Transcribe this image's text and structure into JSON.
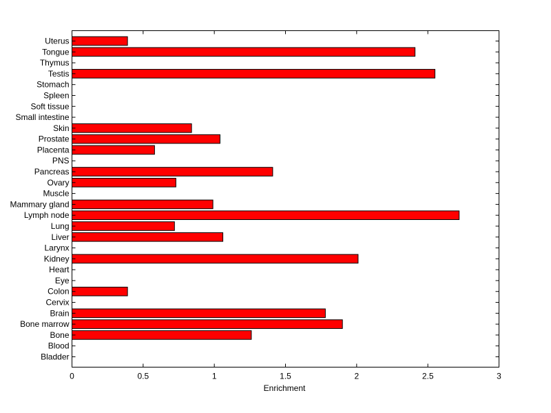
{
  "chart_data": {
    "type": "bar",
    "orientation": "horizontal",
    "title": "",
    "xlabel": "Enrichment",
    "ylabel": "",
    "xlim": [
      0,
      3
    ],
    "xticks": [
      "0",
      "0.5",
      "1",
      "1.5",
      "2",
      "2.5",
      "3"
    ],
    "grid": false,
    "bar_color": "#ff0000",
    "bar_edge_color": "#000000",
    "categories": [
      "Bladder",
      "Blood",
      "Bone",
      "Bone marrow",
      "Brain",
      "Cervix",
      "Colon",
      "Eye",
      "Heart",
      "Kidney",
      "Larynx",
      "Liver",
      "Lung",
      "Lymph node",
      "Mammary gland",
      "Muscle",
      "Ovary",
      "Pancreas",
      "PNS",
      "Placenta",
      "Prostate",
      "Skin",
      "Small intestine",
      "Soft tissue",
      "Spleen",
      "Stomach",
      "Testis",
      "Thymus",
      "Tongue",
      "Uterus"
    ],
    "values": [
      0,
      0,
      1.26,
      1.9,
      1.78,
      0,
      0.39,
      0,
      0,
      2.01,
      0,
      1.06,
      0.72,
      2.72,
      0.99,
      0,
      0.73,
      1.41,
      0,
      0.58,
      1.04,
      0.84,
      0,
      0,
      0,
      0,
      2.55,
      0,
      2.41,
      0.39
    ]
  }
}
